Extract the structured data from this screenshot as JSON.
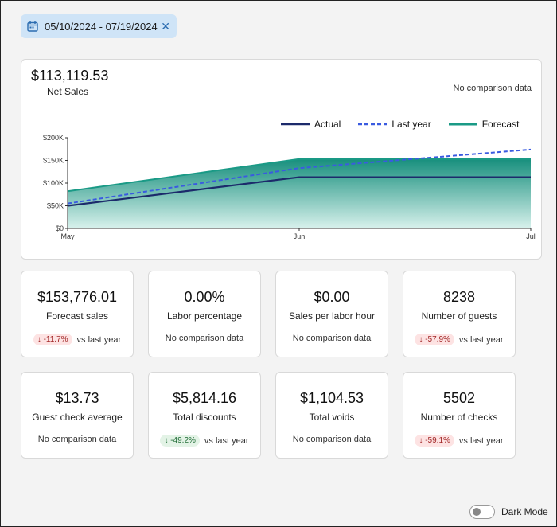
{
  "date_filter": {
    "range": "05/10/2024 - 07/19/2024",
    "clear_icon": "close-icon",
    "calendar_icon": "calendar-icon"
  },
  "net_sales": {
    "value": "$113,119.53",
    "label": "Net Sales",
    "comparison": "No comparison data"
  },
  "legend": {
    "actual": "Actual",
    "last_year": "Last year",
    "forecast": "Forecast"
  },
  "colors": {
    "actual": "#1c2a6b",
    "last_year": "#3a5be0",
    "forecast": "#1a9a86"
  },
  "chart_data": {
    "type": "area",
    "x": [
      "May",
      "Jun",
      "Jul"
    ],
    "y_ticks": [
      "$200K",
      "$150K",
      "$100K",
      "$50K",
      "$0"
    ],
    "ylim": [
      0,
      200000
    ],
    "series": [
      {
        "name": "Actual",
        "style": "line",
        "values": [
          50000,
          113000,
          113000
        ]
      },
      {
        "name": "Last year",
        "style": "dashed",
        "values": [
          55000,
          133000,
          174000
        ]
      },
      {
        "name": "Forecast",
        "style": "area",
        "values": [
          82000,
          153000,
          153000
        ]
      }
    ]
  },
  "stats": [
    {
      "value": "$153,776.01",
      "label": "Forecast sales",
      "change": "↓ -11.7%",
      "trend": "neg",
      "comparison": "vs last year"
    },
    {
      "value": "0.00%",
      "label": "Labor percentage",
      "change": "",
      "trend": "",
      "comparison": "No comparison data"
    },
    {
      "value": "$0.00",
      "label": "Sales per labor hour",
      "change": "",
      "trend": "",
      "comparison": "No comparison data"
    },
    {
      "value": "8238",
      "label": "Number of guests",
      "change": "↓ -57.9%",
      "trend": "neg",
      "comparison": "vs last year"
    },
    {
      "value": "$13.73",
      "label": "Guest check average",
      "change": "",
      "trend": "",
      "comparison": "No comparison data"
    },
    {
      "value": "$5,814.16",
      "label": "Total discounts",
      "change": "↓ -49.2%",
      "trend": "pos",
      "comparison": "vs last year"
    },
    {
      "value": "$1,104.53",
      "label": "Total voids",
      "change": "",
      "trend": "",
      "comparison": "No comparison data"
    },
    {
      "value": "5502",
      "label": "Number of checks",
      "change": "↓ -59.1%",
      "trend": "neg",
      "comparison": "vs last year"
    }
  ],
  "dark_mode": {
    "label": "Dark Mode",
    "enabled": false
  }
}
